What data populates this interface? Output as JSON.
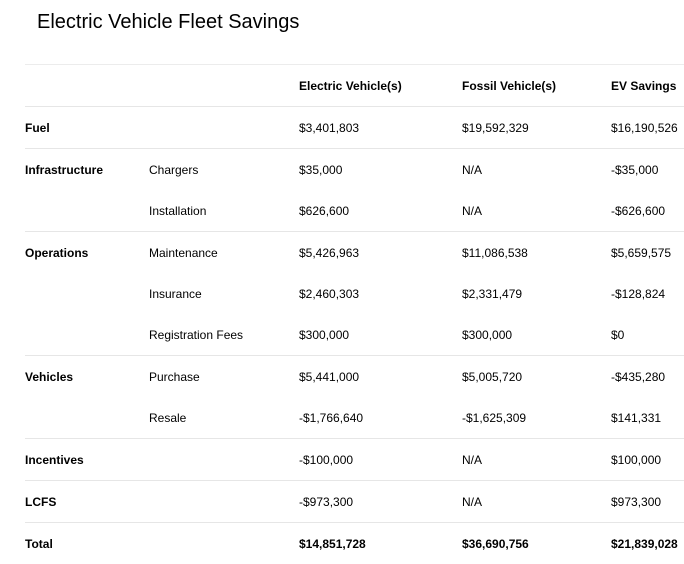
{
  "title": "Electric Vehicle Fleet Savings",
  "columns": {
    "category": "",
    "subcategory": "",
    "ev": "Electric Vehicle(s)",
    "fossil": "Fossil Vehicle(s)",
    "savings": "EV Savings"
  },
  "rows": [
    {
      "category": "Fuel",
      "subcategory": "",
      "ev": "$3,401,803",
      "fossil": "$19,592,329",
      "savings": "$16,190,526"
    },
    {
      "category": "Infrastructure",
      "subcategory": "Chargers",
      "ev": "$35,000",
      "fossil": "N/A",
      "savings": "-$35,000"
    },
    {
      "category": "",
      "subcategory": "Installation",
      "ev": "$626,600",
      "fossil": "N/A",
      "savings": "-$626,600"
    },
    {
      "category": "Operations",
      "subcategory": "Maintenance",
      "ev": "$5,426,963",
      "fossil": "$11,086,538",
      "savings": "$5,659,575"
    },
    {
      "category": "",
      "subcategory": "Insurance",
      "ev": "$2,460,303",
      "fossil": "$2,331,479",
      "savings": "-$128,824"
    },
    {
      "category": "",
      "subcategory": "Registration Fees",
      "ev": "$300,000",
      "fossil": "$300,000",
      "savings": "$0"
    },
    {
      "category": "Vehicles",
      "subcategory": "Purchase",
      "ev": "$5,441,000",
      "fossil": "$5,005,720",
      "savings": "-$435,280"
    },
    {
      "category": "",
      "subcategory": "Resale",
      "ev": "-$1,766,640",
      "fossil": "-$1,625,309",
      "savings": "$141,331"
    },
    {
      "category": "Incentives",
      "subcategory": "",
      "ev": "-$100,000",
      "fossil": "N/A",
      "savings": "$100,000"
    },
    {
      "category": "LCFS",
      "subcategory": "",
      "ev": "-$973,300",
      "fossil": "N/A",
      "savings": "$973,300"
    }
  ],
  "total": {
    "label": "Total",
    "ev": "$14,851,728",
    "fossil": "$36,690,756",
    "savings": "$21,839,028"
  }
}
